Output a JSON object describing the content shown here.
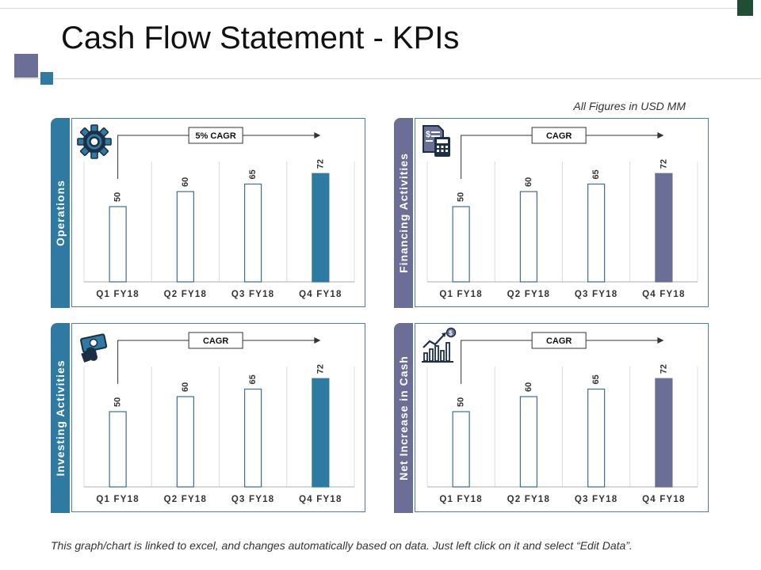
{
  "page": {
    "title": "Cash Flow Statement - KPIs",
    "note": "All Figures in USD MM",
    "footer": "This graph/chart is linked to excel, and changes automatically based on data. Just left click on it and select “Edit Data”."
  },
  "colors": {
    "teal": "#2e7aa3",
    "slate": "#6b6e96",
    "frame": "#4a7f9e"
  },
  "chart_data": [
    {
      "type": "bar",
      "panel_label": "Operations",
      "cagr_label": "5% CAGR",
      "icon": "gear-icon",
      "categories": [
        "Q1 FY18",
        "Q2 FY18",
        "Q3 FY18",
        "Q4 FY18"
      ],
      "values": [
        50,
        60,
        65,
        72
      ],
      "highlight_index": 3,
      "ylim": [
        0,
        80
      ],
      "grid": "vertical separators",
      "accent": "#2e7aa3"
    },
    {
      "type": "bar",
      "panel_label": "Financing Activities",
      "cagr_label": "CAGR",
      "icon": "calculator-document-icon",
      "categories": [
        "Q1 FY18",
        "Q2 FY18",
        "Q3 FY18",
        "Q4 FY18"
      ],
      "values": [
        50,
        60,
        65,
        72
      ],
      "highlight_index": 3,
      "ylim": [
        0,
        80
      ],
      "grid": "vertical separators",
      "accent": "#6b6e96"
    },
    {
      "type": "bar",
      "panel_label": "Investing Activities",
      "cagr_label": "CAGR",
      "icon": "money-hand-icon",
      "categories": [
        "Q1 FY18",
        "Q2 FY18",
        "Q3 FY18",
        "Q4 FY18"
      ],
      "values": [
        50,
        60,
        65,
        72
      ],
      "highlight_index": 3,
      "ylim": [
        0,
        80
      ],
      "grid": "vertical separators",
      "accent": "#2e7aa3"
    },
    {
      "type": "bar",
      "panel_label": "Net Increase in Cash",
      "cagr_label": "CAGR",
      "icon": "growth-chart-icon",
      "categories": [
        "Q1 FY18",
        "Q2 FY18",
        "Q3 FY18",
        "Q4 FY18"
      ],
      "values": [
        50,
        60,
        65,
        72
      ],
      "highlight_index": 3,
      "ylim": [
        0,
        80
      ],
      "grid": "vertical separators",
      "accent": "#6b6e96"
    }
  ]
}
